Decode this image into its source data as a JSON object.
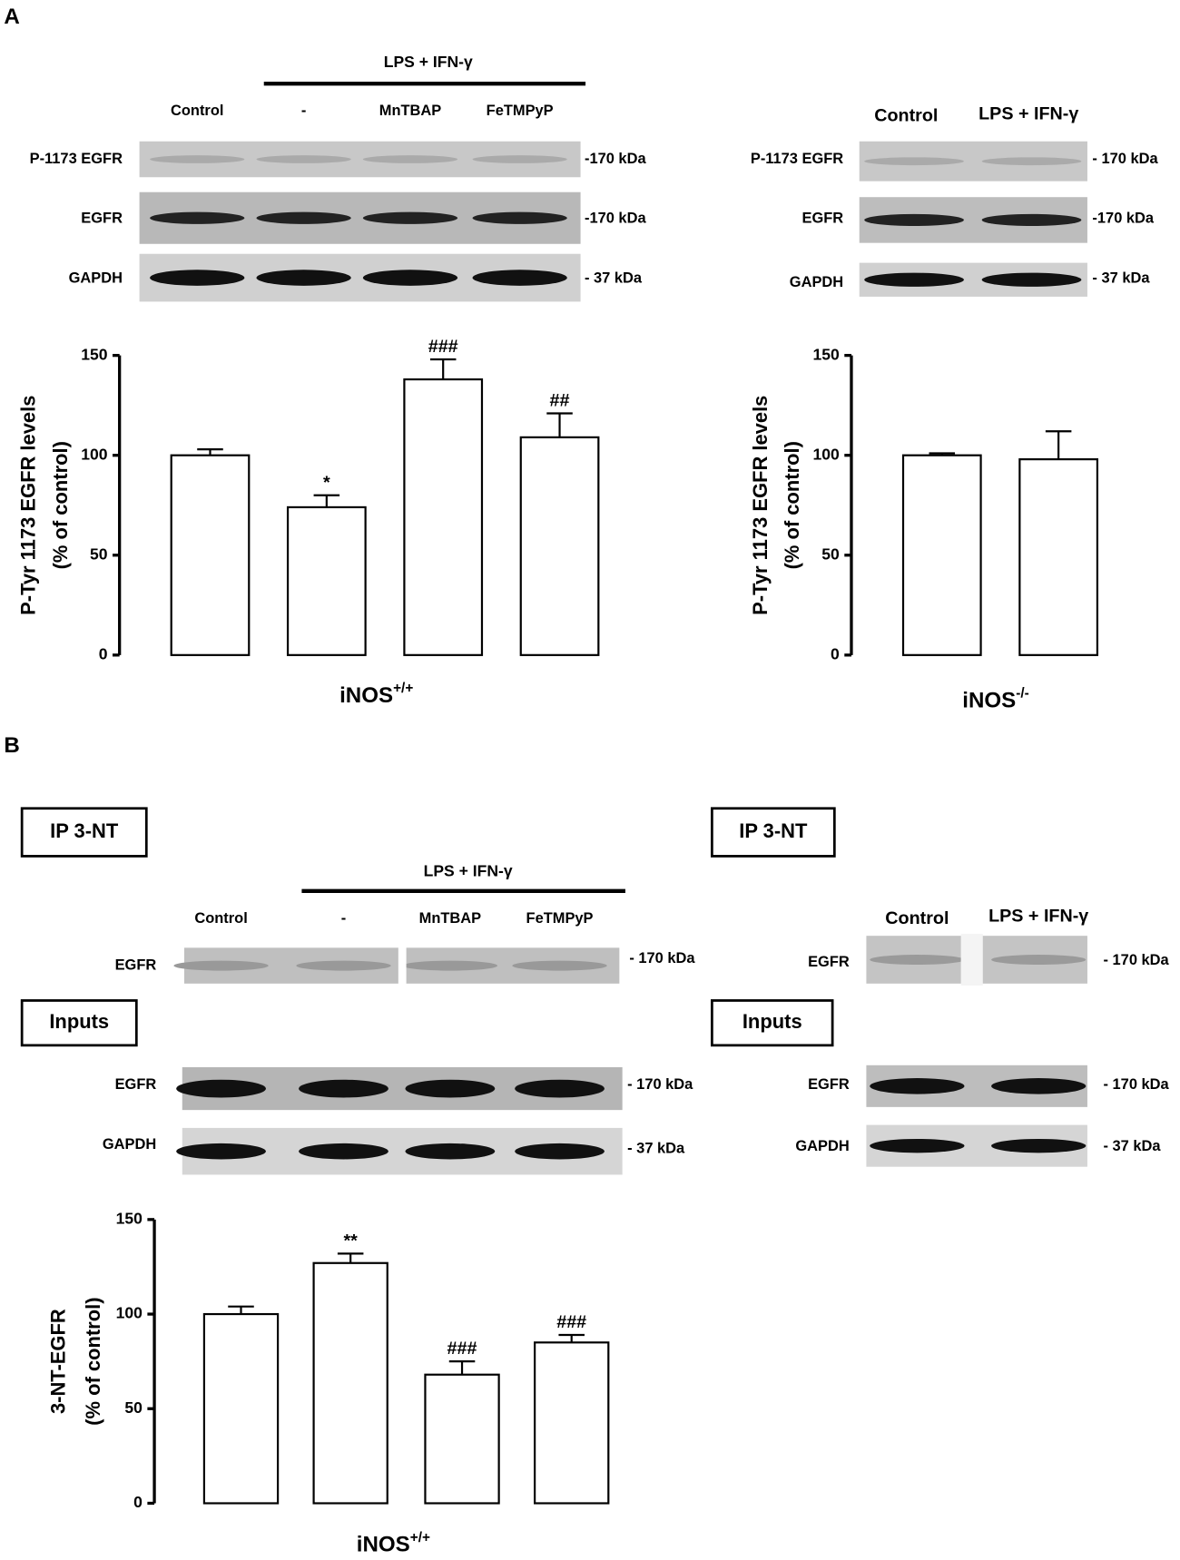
{
  "panel_a": {
    "label": "A",
    "left": {
      "treatment": "LPS + IFN-γ",
      "lanes": [
        "Control",
        "-",
        "MnTBAP",
        "FeTMPyP"
      ],
      "rows": [
        {
          "protein": "P-1173 EGFR",
          "size": "-170 kDa"
        },
        {
          "protein": "EGFR",
          "size": "-170 kDa"
        },
        {
          "protein": "GAPDH",
          "size": "- 37 kDa"
        }
      ]
    },
    "right": {
      "lanes": [
        "Control",
        "LPS + IFN-γ"
      ],
      "rows": [
        {
          "protein": "P-1173 EGFR",
          "size": "- 170 kDa"
        },
        {
          "protein": "EGFR",
          "size": "-170 kDa"
        },
        {
          "protein": "GAPDH",
          "size": "- 37 kDa"
        }
      ]
    }
  },
  "panel_b": {
    "label": "B",
    "left": {
      "ip_box": "IP 3-NT",
      "inputs_box": "Inputs",
      "treatment": "LPS + IFN-γ",
      "lanes": [
        "Control",
        "-",
        "MnTBAP",
        "FeTMPyP"
      ],
      "ip_rows": [
        {
          "protein": "EGFR",
          "size": "- 170 kDa"
        }
      ],
      "input_rows": [
        {
          "protein": "EGFR",
          "size": "- 170 kDa"
        },
        {
          "protein": "GAPDH",
          "size": "- 37 kDa"
        }
      ]
    },
    "right": {
      "ip_box": "IP 3-NT",
      "inputs_box": "Inputs",
      "lanes": [
        "Control",
        "LPS + IFN-γ"
      ],
      "ip_rows": [
        {
          "protein": "EGFR",
          "size": "- 170 kDa"
        }
      ],
      "input_rows": [
        {
          "protein": "EGFR",
          "size": "- 170 kDa"
        },
        {
          "protein": "GAPDH",
          "size": "- 37 kDa"
        }
      ]
    }
  },
  "chart_data": [
    {
      "type": "bar",
      "categories": [
        null,
        null,
        null,
        null
      ],
      "values": [
        100,
        74,
        138,
        109
      ],
      "errors": [
        3,
        6,
        10,
        12
      ],
      "annotations": [
        null,
        "*",
        "###",
        "##"
      ],
      "ylabel": [
        "P-Tyr 1173 EGFR levels",
        "(% of control)"
      ],
      "xlabel": "iNOS",
      "xlabel_sup": "+/+",
      "ylim": [
        0,
        150
      ],
      "yticks": [
        0,
        50,
        100,
        150
      ],
      "color": "#ffffff"
    },
    {
      "type": "bar",
      "categories": [
        null,
        null
      ],
      "values": [
        100,
        98
      ],
      "errors": [
        1,
        14
      ],
      "ylabel": [
        "P-Tyr 1173 EGFR levels",
        "(% of control)"
      ],
      "xlabel": "iNOS",
      "xlabel_sup": "-/-",
      "ylim": [
        0,
        150
      ],
      "yticks": [
        0,
        50,
        100,
        150
      ],
      "color": "#ffffff"
    },
    {
      "type": "bar",
      "categories": [
        null,
        null,
        null,
        null
      ],
      "values": [
        100,
        127,
        68,
        85
      ],
      "errors": [
        4,
        5,
        7,
        4
      ],
      "annotations": [
        null,
        "**",
        "###",
        "###"
      ],
      "ylabel": [
        "3-NT-EGFR",
        "(% of control)"
      ],
      "xlabel": "iNOS",
      "xlabel_sup": "+/+",
      "ylim": [
        0,
        150
      ],
      "yticks": [
        0,
        50,
        100,
        150
      ],
      "color": "#ffffff"
    }
  ]
}
